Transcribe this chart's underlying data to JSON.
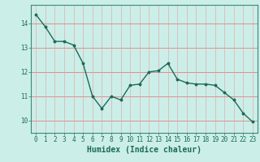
{
  "x": [
    0,
    1,
    2,
    3,
    4,
    5,
    6,
    7,
    8,
    9,
    10,
    11,
    12,
    13,
    14,
    15,
    16,
    17,
    18,
    19,
    20,
    21,
    22,
    23
  ],
  "y": [
    14.35,
    13.85,
    13.25,
    13.25,
    13.1,
    12.35,
    11.0,
    10.5,
    11.0,
    10.85,
    11.45,
    11.5,
    12.0,
    12.05,
    12.35,
    11.7,
    11.55,
    11.5,
    11.5,
    11.45,
    11.15,
    10.85,
    10.3,
    9.95
  ],
  "line_color": "#1a6b5a",
  "marker": "o",
  "marker_size": 1.8,
  "linewidth": 1.0,
  "xlabel": "Humidex (Indice chaleur)",
  "xlabel_fontsize": 7,
  "xlabel_color": "#1a6b5a",
  "xlim": [
    -0.5,
    23.5
  ],
  "ylim": [
    9.5,
    14.75
  ],
  "yticks": [
    10,
    11,
    12,
    13,
    14
  ],
  "xticks": [
    0,
    1,
    2,
    3,
    4,
    5,
    6,
    7,
    8,
    9,
    10,
    11,
    12,
    13,
    14,
    15,
    16,
    17,
    18,
    19,
    20,
    21,
    22,
    23
  ],
  "background_color": "#cceee8",
  "grid_h_color": "#e08080",
  "grid_v_color": "#e0a0a0",
  "tick_color": "#1a6b5a",
  "tick_fontsize": 5.5,
  "spine_color": "#3a8a7a"
}
